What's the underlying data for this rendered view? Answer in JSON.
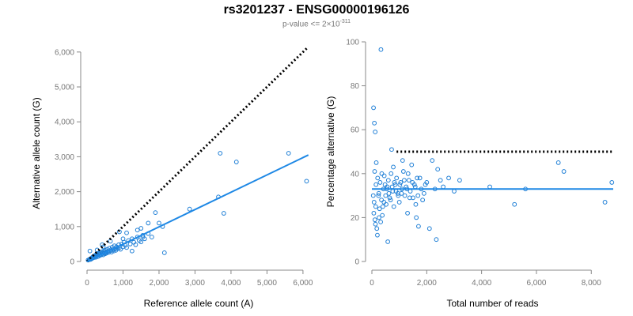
{
  "title": "rs3201237 - ENSG00000196126",
  "subtitle_prefix": "p-value <= 2×10",
  "subtitle_exponent": "-311",
  "colors": {
    "points": "#1f7fd6",
    "fit": "#1e88e5",
    "reference": "#000000",
    "axis": "#888888"
  },
  "chart_data": [
    {
      "type": "scatter",
      "xlabel": "Reference allele count (A)",
      "ylabel": "Alternative allele count (G)",
      "xlim": [
        0,
        6200
      ],
      "ylim": [
        0,
        6200
      ],
      "xticks": [
        0,
        1000,
        2000,
        3000,
        4000,
        5000,
        6000
      ],
      "xtick_labels": [
        "0",
        "1,000",
        "2,000",
        "3,000",
        "4,000",
        "5,000",
        "6,000"
      ],
      "yticks": [
        0,
        1000,
        2000,
        3000,
        4000,
        5000,
        6000
      ],
      "ytick_labels": [
        "0",
        "1,000",
        "2,000",
        "3,000",
        "4,000",
        "5,000",
        "6,000"
      ],
      "reference_line": {
        "style": "dotted",
        "x": [
          0,
          6150
        ],
        "y": [
          0,
          6150
        ]
      },
      "fit_line": {
        "style": "solid",
        "x": [
          0,
          6150
        ],
        "y": [
          0,
          3050
        ]
      },
      "points": [
        [
          30,
          40
        ],
        [
          60,
          55
        ],
        [
          80,
          70
        ],
        [
          100,
          60
        ],
        [
          110,
          90
        ],
        [
          130,
          80
        ],
        [
          150,
          120
        ],
        [
          160,
          100
        ],
        [
          170,
          140
        ],
        [
          180,
          110
        ],
        [
          200,
          150
        ],
        [
          210,
          130
        ],
        [
          220,
          170
        ],
        [
          240,
          120
        ],
        [
          250,
          190
        ],
        [
          260,
          160
        ],
        [
          280,
          200
        ],
        [
          300,
          140
        ],
        [
          310,
          230
        ],
        [
          320,
          180
        ],
        [
          340,
          210
        ],
        [
          350,
          250
        ],
        [
          360,
          170
        ],
        [
          380,
          240
        ],
        [
          400,
          200
        ],
        [
          410,
          280
        ],
        [
          420,
          230
        ],
        [
          440,
          260
        ],
        [
          450,
          190
        ],
        [
          470,
          300
        ],
        [
          480,
          250
        ],
        [
          500,
          220
        ],
        [
          510,
          320
        ],
        [
          520,
          270
        ],
        [
          540,
          240
        ],
        [
          560,
          350
        ],
        [
          580,
          290
        ],
        [
          600,
          260
        ],
        [
          620,
          380
        ],
        [
          640,
          300
        ],
        [
          660,
          330
        ],
        [
          680,
          270
        ],
        [
          700,
          410
        ],
        [
          720,
          340
        ],
        [
          740,
          300
        ],
        [
          760,
          450
        ],
        [
          780,
          360
        ],
        [
          800,
          320
        ],
        [
          820,
          420
        ],
        [
          850,
          370
        ],
        [
          880,
          480
        ],
        [
          900,
          400
        ],
        [
          930,
          350
        ],
        [
          960,
          500
        ],
        [
          1000,
          420
        ],
        [
          1030,
          550
        ],
        [
          1060,
          460
        ],
        [
          1100,
          400
        ],
        [
          1150,
          600
        ],
        [
          1200,
          500
        ],
        [
          1250,
          650
        ],
        [
          1300,
          550
        ],
        [
          1350,
          480
        ],
        [
          1400,
          700
        ],
        [
          1450,
          600
        ],
        [
          1500,
          560
        ],
        [
          1550,
          750
        ],
        [
          1600,
          650
        ],
        [
          1700,
          800
        ],
        [
          1800,
          700
        ],
        [
          1900,
          1400
        ],
        [
          2000,
          1100
        ],
        [
          2100,
          1000
        ],
        [
          2150,
          250
        ],
        [
          2850,
          1500
        ],
        [
          3650,
          1850
        ],
        [
          3700,
          3100
        ],
        [
          3800,
          1380
        ],
        [
          4150,
          2850
        ],
        [
          5600,
          3100
        ],
        [
          6100,
          2300
        ],
        [
          280,
          330
        ],
        [
          420,
          480
        ],
        [
          650,
          580
        ],
        [
          900,
          850
        ],
        [
          1100,
          820
        ],
        [
          1250,
          300
        ],
        [
          1500,
          950
        ],
        [
          450,
          420
        ],
        [
          1700,
          1100
        ],
        [
          80,
          300
        ],
        [
          1400,
          900
        ],
        [
          1550,
          700
        ],
        [
          1000,
          650
        ]
      ]
    },
    {
      "type": "scatter",
      "xlabel": "Total number of reads",
      "ylabel": "Percentage alternative (G)",
      "xlim": [
        0,
        8800
      ],
      "ylim": [
        0,
        100
      ],
      "xticks": [
        0,
        2000,
        4000,
        6000,
        8000
      ],
      "xtick_labels": [
        "0",
        "2,000",
        "4,000",
        "6,000",
        "8,000"
      ],
      "yticks": [
        0,
        20,
        40,
        60,
        80,
        100
      ],
      "ytick_labels": [
        "0",
        "20",
        "40",
        "60",
        "80",
        "100"
      ],
      "reference_line": {
        "style": "dotted",
        "x": [
          900,
          8800
        ],
        "y": [
          50,
          50
        ]
      },
      "fit_line": {
        "style": "solid",
        "x": [
          0,
          8800
        ],
        "y": [
          33,
          33
        ]
      },
      "points": [
        [
          330,
          96.5
        ],
        [
          60,
          70
        ],
        [
          90,
          63
        ],
        [
          120,
          59
        ],
        [
          100,
          41
        ],
        [
          150,
          35
        ],
        [
          80,
          27
        ],
        [
          70,
          22
        ],
        [
          110,
          19
        ],
        [
          130,
          17
        ],
        [
          180,
          15
        ],
        [
          200,
          12
        ],
        [
          250,
          31
        ],
        [
          280,
          24
        ],
        [
          300,
          36
        ],
        [
          350,
          28
        ],
        [
          380,
          21
        ],
        [
          420,
          33
        ],
        [
          450,
          39
        ],
        [
          500,
          30
        ],
        [
          520,
          26
        ],
        [
          560,
          34
        ],
        [
          600,
          37
        ],
        [
          650,
          29
        ],
        [
          700,
          40
        ],
        [
          720,
          51
        ],
        [
          760,
          32
        ],
        [
          800,
          25
        ],
        [
          850,
          35
        ],
        [
          900,
          38
        ],
        [
          950,
          31
        ],
        [
          1000,
          27
        ],
        [
          1050,
          36
        ],
        [
          1100,
          33
        ],
        [
          1150,
          41
        ],
        [
          1200,
          30
        ],
        [
          1250,
          34
        ],
        [
          1300,
          22
        ],
        [
          1350,
          37
        ],
        [
          1400,
          32
        ],
        [
          1450,
          44
        ],
        [
          1500,
          29
        ],
        [
          1550,
          35
        ],
        [
          1600,
          26
        ],
        [
          1650,
          38
        ],
        [
          1700,
          16
        ],
        [
          1800,
          33
        ],
        [
          1900,
          31
        ],
        [
          2000,
          36
        ],
        [
          2100,
          15
        ],
        [
          2200,
          46
        ],
        [
          2300,
          33
        ],
        [
          2400,
          42
        ],
        [
          2350,
          10
        ],
        [
          2600,
          34
        ],
        [
          2800,
          38
        ],
        [
          3000,
          32
        ],
        [
          3200,
          37
        ],
        [
          4300,
          34
        ],
        [
          5200,
          26
        ],
        [
          5600,
          33
        ],
        [
          6800,
          45
        ],
        [
          7000,
          41
        ],
        [
          8500,
          27
        ],
        [
          8750,
          36
        ],
        [
          160,
          45
        ],
        [
          240,
          30
        ],
        [
          320,
          18
        ],
        [
          400,
          25
        ],
        [
          480,
          35
        ],
        [
          540,
          33
        ],
        [
          620,
          31
        ],
        [
          680,
          28
        ],
        [
          740,
          34
        ],
        [
          820,
          36
        ],
        [
          880,
          32
        ],
        [
          960,
          30
        ],
        [
          1020,
          35
        ],
        [
          1080,
          31
        ],
        [
          1180,
          37
        ],
        [
          1280,
          33
        ],
        [
          1380,
          29
        ],
        [
          1480,
          36
        ],
        [
          1580,
          34
        ],
        [
          1680,
          30
        ],
        [
          1750,
          38
        ],
        [
          1850,
          28
        ],
        [
          1950,
          35
        ],
        [
          50,
          30
        ],
        [
          140,
          25
        ],
        [
          210,
          38
        ],
        [
          260,
          20
        ],
        [
          360,
          40
        ],
        [
          440,
          27
        ],
        [
          580,
          9
        ],
        [
          780,
          43
        ],
        [
          1120,
          46
        ],
        [
          1320,
          40
        ],
        [
          1620,
          20
        ],
        [
          2500,
          37
        ]
      ]
    }
  ]
}
